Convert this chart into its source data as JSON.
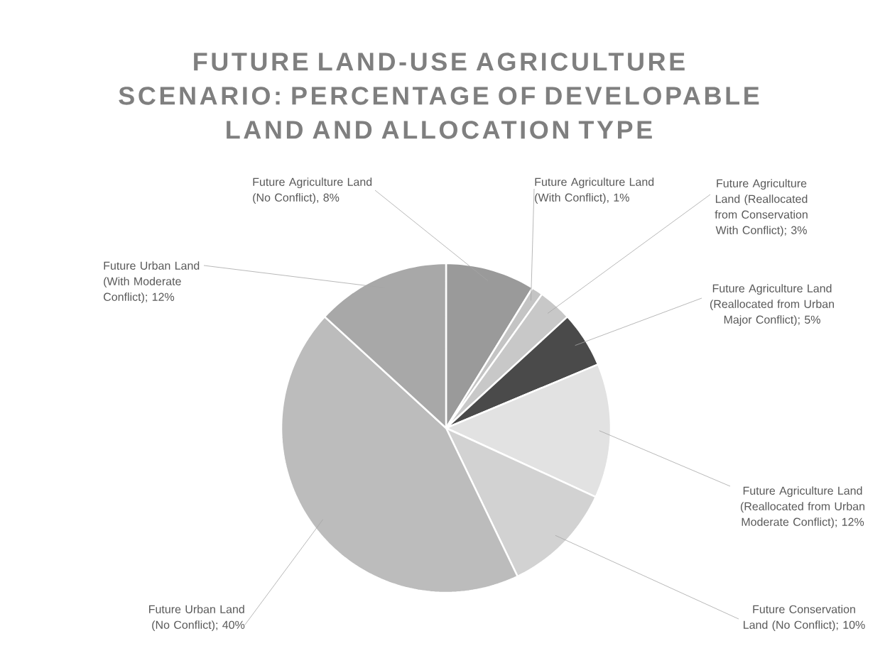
{
  "chart_data": {
    "type": "pie",
    "title": "FUTURE LAND-USE AGRICULTURE SCENARIO: PERCENTAGE OF DEVELOPABLE LAND AND ALLOCATION TYPE",
    "categories": [
      "Future Agriculture Land (No Conflict)",
      "Future Agriculture Land (With Conflict)",
      "Future Agriculture Land (Reallocated from Conservation With Conflict)",
      "Future Agriculture Land (Reallocated from Urban Major Conflict)",
      "Future Agriculture Land (Reallocated from Urban Moderate Conflict)",
      "Future Conservation Land (No Conflict)",
      "Future Urban Land (No Conflict)",
      "Future Urban Land (With Moderate Conflict)"
    ],
    "values": [
      8,
      1,
      3,
      5,
      12,
      10,
      40,
      12
    ],
    "value_labels": [
      ", 8%",
      ", 1%",
      "; 3%",
      "; 5%",
      "; 12%",
      "; 10%",
      "; 40%",
      "; 12%"
    ],
    "colors": [
      "#9a9a9a",
      "#c4c4c4",
      "#c8c8c8",
      "#4a4a4a",
      "#e2e2e2",
      "#d2d2d2",
      "#bcbcbc",
      "#a8a8a8"
    ]
  }
}
